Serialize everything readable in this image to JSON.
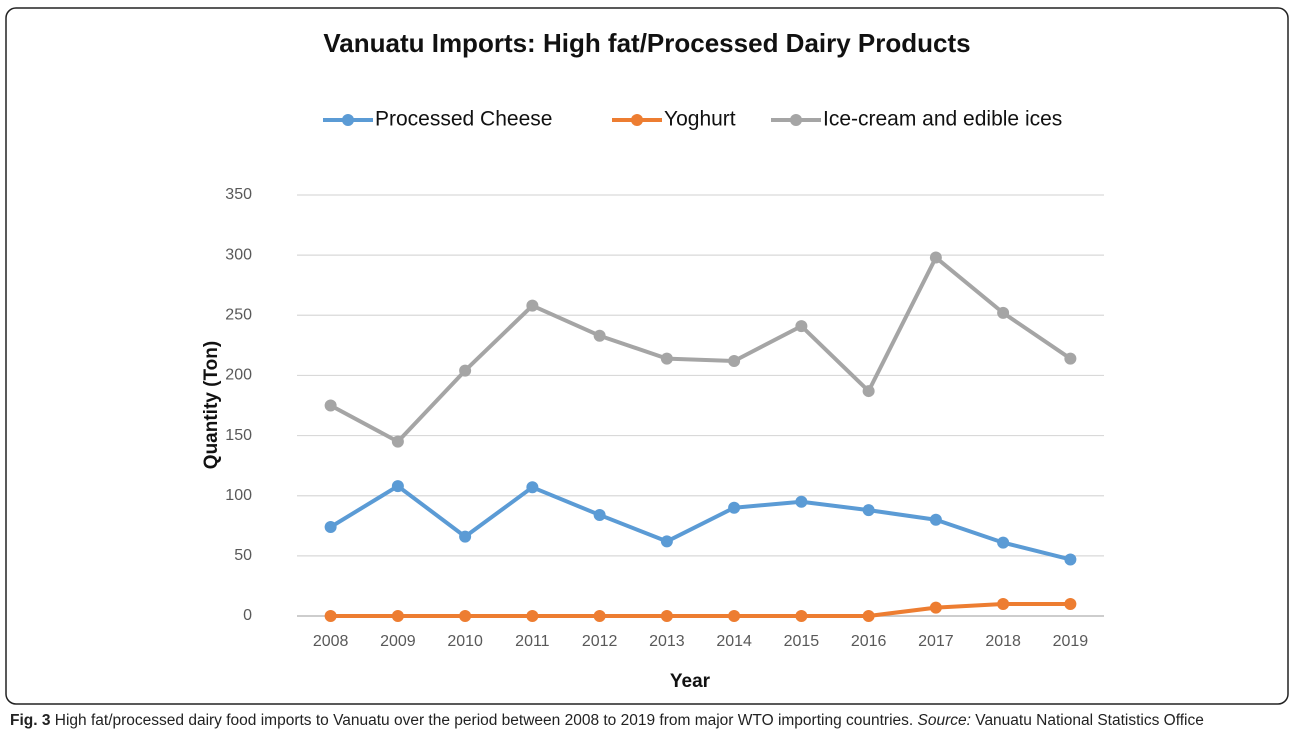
{
  "chart_data": {
    "type": "line",
    "title": "Vanuatu Imports: High fat/Processed Dairy Products",
    "x_label": "Year",
    "y_label": "Quantity (Ton)",
    "categories": [
      "2008",
      "2009",
      "2010",
      "2011",
      "2012",
      "2013",
      "2014",
      "2015",
      "2016",
      "2017",
      "2018",
      "2019"
    ],
    "series": [
      {
        "name": "Processed Cheese",
        "color": "#5b9bd5",
        "values": [
          74,
          108,
          66,
          107,
          84,
          62,
          90,
          95,
          88,
          80,
          61,
          47
        ]
      },
      {
        "name": "Yoghurt",
        "color": "#ed7d31",
        "values": [
          0,
          0,
          0,
          0,
          0,
          0,
          0,
          0,
          0,
          7,
          10,
          10
        ]
      },
      {
        "name": "Ice-cream and edible ices",
        "color": "#a5a5a5",
        "values": [
          175,
          145,
          204,
          258,
          233,
          214,
          212,
          241,
          187,
          298,
          252,
          214
        ]
      }
    ],
    "ylim": [
      0,
      350
    ],
    "yticks": [
      0,
      50,
      100,
      150,
      200,
      250,
      300,
      350
    ],
    "grid": true,
    "legend": "top"
  },
  "caption": {
    "label": "Fig. 3",
    "text": "High fat/processed dairy food imports to Vanuatu over the period between 2008 to 2019 from major WTO importing countries.",
    "source_label": "Source:",
    "source": "Vanuatu National Statistics Office"
  }
}
